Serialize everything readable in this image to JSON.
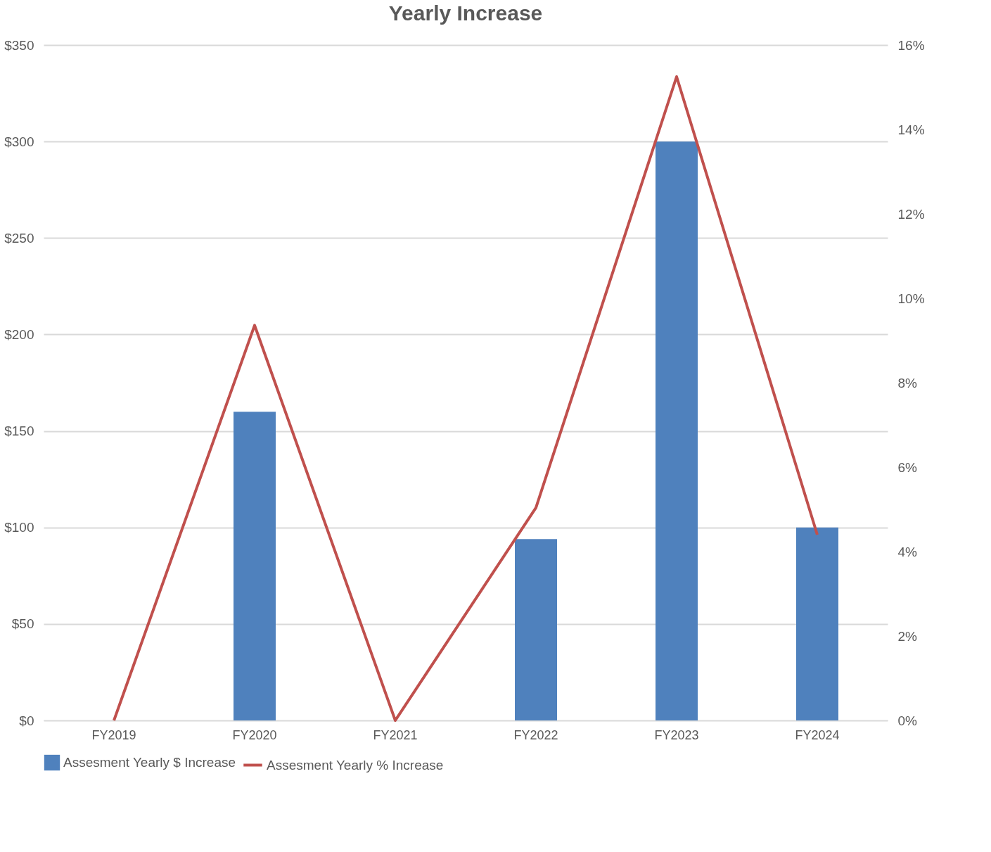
{
  "chart_data": {
    "type": "bar",
    "title": "Yearly Increase",
    "categories": [
      "FY2019",
      "FY2020",
      "FY2021",
      "FY2022",
      "FY2023",
      "FY2024"
    ],
    "series": [
      {
        "name": "Assesment Yearly $ Increase",
        "color": "#4f81bd",
        "values": [
          0,
          160,
          0,
          94,
          300,
          100
        ]
      },
      {
        "name": "Assesment Yearly % Increase",
        "type": "line",
        "axis": "y2",
        "color": "#c0504d",
        "values": [
          0,
          9.36,
          0,
          5.04,
          15.25,
          4.4
        ]
      }
    ],
    "ylim": [
      0,
      350
    ],
    "yticks": [
      {
        "value": 0,
        "label": "$0"
      },
      {
        "value": 50,
        "label": "$50"
      },
      {
        "value": 100,
        "label": "$100"
      },
      {
        "value": 150,
        "label": "$150"
      },
      {
        "value": 200,
        "label": "$200"
      },
      {
        "value": 250,
        "label": "$250"
      },
      {
        "value": 300,
        "label": "$300"
      },
      {
        "value": 350,
        "label": "$350"
      }
    ],
    "y2lim": [
      0,
      16
    ],
    "y2ticks": [
      {
        "value": 0,
        "label": "0%"
      },
      {
        "value": 2,
        "label": "2%"
      },
      {
        "value": 4,
        "label": "4%"
      },
      {
        "value": 6,
        "label": "6%"
      },
      {
        "value": 8,
        "label": "8%"
      },
      {
        "value": 10,
        "label": "10%"
      },
      {
        "value": 12,
        "label": "12%"
      },
      {
        "value": 14,
        "label": "14%"
      },
      {
        "value": 16,
        "label": "16%"
      }
    ],
    "grid": "y",
    "legend": "bottom",
    "line_style": "solid",
    "marker": "none"
  }
}
